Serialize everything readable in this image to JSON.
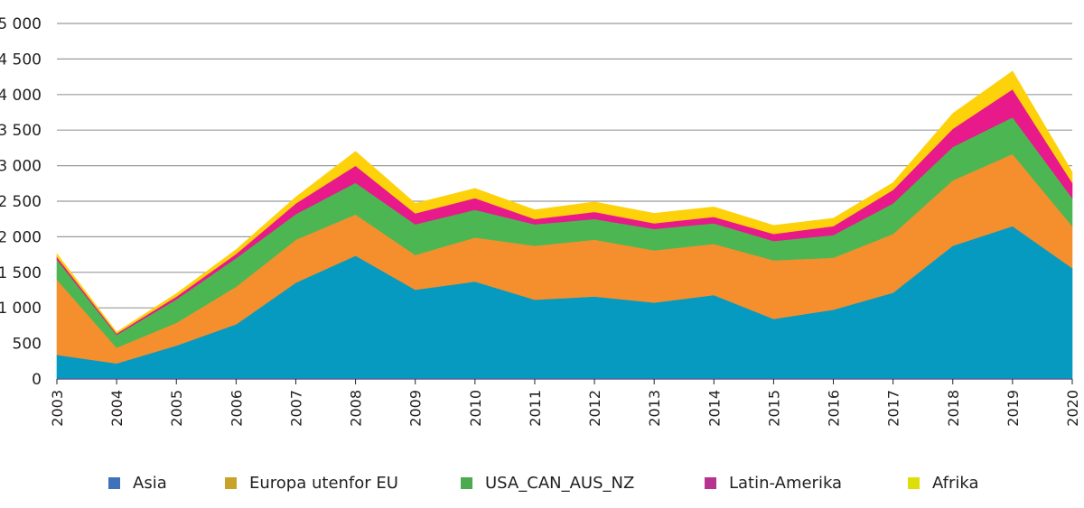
{
  "chart_data": {
    "type": "area",
    "stacked": true,
    "title": "",
    "xlabel": "",
    "ylabel": "",
    "ylim": [
      0,
      5000
    ],
    "yticks": [
      0,
      500,
      1000,
      1500,
      2000,
      2500,
      3000,
      3500,
      4000,
      4500,
      5000
    ],
    "ytick_labels": [
      "0",
      "500",
      "1 000",
      "1 500",
      "2 000",
      "2 500",
      "3 000",
      "3 500",
      "4 000",
      "4 500",
      "5 000"
    ],
    "grid": "horizontal",
    "legend_position": "bottom",
    "categories": [
      "2003",
      "2004",
      "2005",
      "2006",
      "2007",
      "2008",
      "2009",
      "2010",
      "2011",
      "2012",
      "2013",
      "2014",
      "2015",
      "2016",
      "2017",
      "2018",
      "2019",
      "2020"
    ],
    "series": [
      {
        "name": "Asia",
        "fill": "#079ac0",
        "legend_color": "#3f72b8",
        "values": [
          340,
          220,
          470,
          770,
          1355,
          1735,
          1255,
          1370,
          1115,
          1160,
          1075,
          1180,
          845,
          975,
          1215,
          1875,
          2150,
          1560
        ]
      },
      {
        "name": "Europa utenfor EU",
        "fill": "#f58f2d",
        "legend_color": "#c9a227",
        "values": [
          1060,
          220,
          320,
          530,
          605,
          580,
          490,
          620,
          760,
          800,
          735,
          720,
          825,
          730,
          825,
          920,
          1015,
          590
        ]
      },
      {
        "name": "USA_CAN_AUS_NZ",
        "fill": "#4cb752",
        "legend_color": "#4cab50",
        "values": [
          280,
          180,
          330,
          400,
          360,
          445,
          430,
          390,
          300,
          290,
          300,
          290,
          270,
          320,
          430,
          470,
          515,
          395
        ]
      },
      {
        "name": "Latin-Amerika",
        "fill": "#e8198b",
        "legend_color": "#b8328f",
        "values": [
          40,
          20,
          40,
          60,
          150,
          240,
          155,
          165,
          75,
          100,
          80,
          90,
          100,
          125,
          190,
          255,
          395,
          215
        ]
      },
      {
        "name": "Afrika",
        "fill": "#fdd20a",
        "legend_color": "#dedf0a",
        "values": [
          40,
          20,
          40,
          60,
          90,
          200,
          140,
          135,
          130,
          140,
          140,
          140,
          120,
          110,
          100,
          215,
          255,
          150
        ]
      }
    ]
  }
}
